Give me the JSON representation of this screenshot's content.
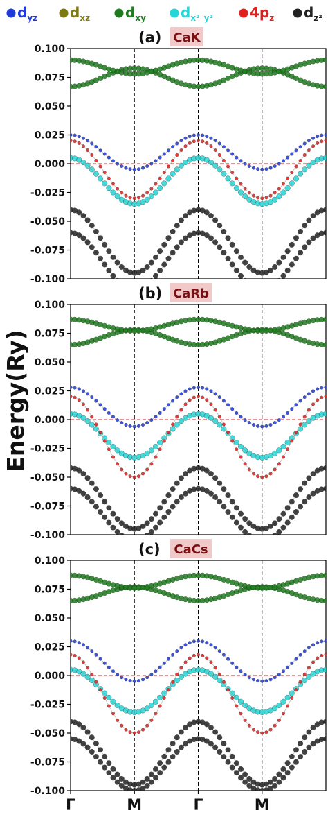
{
  "chart_data": {
    "type": "scatter",
    "ylabel": "Energy(Ry)",
    "legend": {
      "placement": "top",
      "entries": [
        {
          "base": "d",
          "sub": "yz",
          "sup": "",
          "color": "#1f3ad8"
        },
        {
          "base": "d",
          "sub": "xz",
          "sup": "",
          "color": "#7d7a12"
        },
        {
          "base": "d",
          "sub": "xy",
          "sup": "",
          "color": "#1f7a1f"
        },
        {
          "base": "d",
          "sub": "x²₋y²",
          "sup": "",
          "color": "#26d6d6"
        },
        {
          "base": "4p",
          "sub": "z",
          "sup": "",
          "color": "#e0211d"
        },
        {
          "base": "d",
          "sub": "z²",
          "sup": "",
          "color": "#222222"
        }
      ]
    },
    "kpath": [
      "Γ",
      "M",
      "Γ",
      "M"
    ],
    "ylim": [
      -0.1,
      0.1
    ],
    "yticks": [
      "0.100",
      "0.075",
      "0.050",
      "0.025",
      "0.000",
      "-0.025",
      "-0.050",
      "-0.075",
      "-0.100"
    ],
    "fermi_level": 0.0,
    "panels": [
      {
        "label": "(a)",
        "name": "CaK",
        "bands": [
          {
            "orbital": "dz2",
            "k": [
              0,
              0.5,
              1,
              1.5,
              2
            ],
            "E": [
              -0.04,
              -0.095,
              -0.04,
              -0.095,
              -0.04
            ]
          },
          {
            "orbital": "dz2",
            "k": [
              0,
              0.5,
              1,
              1.5,
              2
            ],
            "E": [
              -0.06,
              -0.11,
              -0.06,
              -0.11,
              -0.06
            ]
          },
          {
            "orbital": "dx2-y2",
            "k": [
              0,
              0.5,
              1,
              1.5,
              2
            ],
            "E": [
              0.005,
              -0.035,
              0.005,
              -0.035,
              0.005
            ]
          },
          {
            "orbital": "dxy",
            "k": [
              0,
              0.5,
              1,
              1.5,
              2
            ],
            "E": [
              0.067,
              0.083,
              0.067,
              0.083,
              0.067
            ]
          },
          {
            "orbital": "dxy",
            "k": [
              0,
              0.5,
              1,
              1.5,
              2
            ],
            "E": [
              0.09,
              0.078,
              0.09,
              0.078,
              0.09
            ]
          },
          {
            "orbital": "dyz",
            "k": [
              0,
              0.5,
              1,
              1.5,
              2
            ],
            "E": [
              0.025,
              -0.005,
              0.025,
              -0.005,
              0.025
            ]
          },
          {
            "orbital": "4pz",
            "k": [
              0,
              0.5,
              1,
              1.5,
              2
            ],
            "E": [
              0.02,
              -0.03,
              0.02,
              -0.03,
              0.02
            ]
          }
        ]
      },
      {
        "label": "(b)",
        "name": "CaRb",
        "bands": [
          {
            "orbital": "dz2",
            "k": [
              0,
              0.5,
              1,
              1.5,
              2
            ],
            "E": [
              -0.042,
              -0.095,
              -0.042,
              -0.095,
              -0.042
            ]
          },
          {
            "orbital": "dz2",
            "k": [
              0,
              0.5,
              1,
              1.5,
              2
            ],
            "E": [
              -0.06,
              -0.105,
              -0.06,
              -0.105,
              -0.06
            ]
          },
          {
            "orbital": "dx2-y2",
            "k": [
              0,
              0.5,
              1,
              1.5,
              2
            ],
            "E": [
              0.005,
              -0.033,
              0.005,
              -0.033,
              0.005
            ]
          },
          {
            "orbital": "dxy",
            "k": [
              0,
              0.5,
              1,
              1.5,
              2
            ],
            "E": [
              0.065,
              0.078,
              0.065,
              0.078,
              0.065
            ]
          },
          {
            "orbital": "dxy",
            "k": [
              0,
              0.5,
              1,
              1.5,
              2
            ],
            "E": [
              0.087,
              0.077,
              0.087,
              0.077,
              0.087
            ]
          },
          {
            "orbital": "dyz",
            "k": [
              0,
              0.5,
              1,
              1.5,
              2
            ],
            "E": [
              0.028,
              -0.006,
              0.028,
              -0.006,
              0.028
            ]
          },
          {
            "orbital": "4pz",
            "k": [
              0,
              0.5,
              1,
              1.5,
              2
            ],
            "E": [
              0.02,
              -0.05,
              0.02,
              -0.05,
              0.02
            ]
          }
        ]
      },
      {
        "label": "(c)",
        "name": "CaCs",
        "bands": [
          {
            "orbital": "dz2",
            "k": [
              0,
              0.5,
              1,
              1.5,
              2
            ],
            "E": [
              -0.04,
              -0.095,
              -0.04,
              -0.095,
              -0.04
            ]
          },
          {
            "orbital": "dz2",
            "k": [
              0,
              0.5,
              1,
              1.5,
              2
            ],
            "E": [
              -0.055,
              -0.1,
              -0.055,
              -0.1,
              -0.055
            ]
          },
          {
            "orbital": "dx2-y2",
            "k": [
              0,
              0.5,
              1,
              1.5,
              2
            ],
            "E": [
              0.005,
              -0.032,
              0.005,
              -0.032,
              0.005
            ]
          },
          {
            "orbital": "dxy",
            "k": [
              0,
              0.5,
              1,
              1.5,
              2
            ],
            "E": [
              0.065,
              0.077,
              0.065,
              0.077,
              0.065
            ]
          },
          {
            "orbital": "dxy",
            "k": [
              0,
              0.5,
              1,
              1.5,
              2
            ],
            "E": [
              0.087,
              0.076,
              0.087,
              0.076,
              0.087
            ]
          },
          {
            "orbital": "dyz",
            "k": [
              0,
              0.5,
              1,
              1.5,
              2
            ],
            "E": [
              0.03,
              -0.005,
              0.03,
              -0.005,
              0.03
            ]
          },
          {
            "orbital": "4pz",
            "k": [
              0,
              0.5,
              1,
              1.5,
              2
            ],
            "E": [
              0.018,
              -0.05,
              0.018,
              -0.05,
              0.018
            ]
          }
        ]
      }
    ]
  }
}
